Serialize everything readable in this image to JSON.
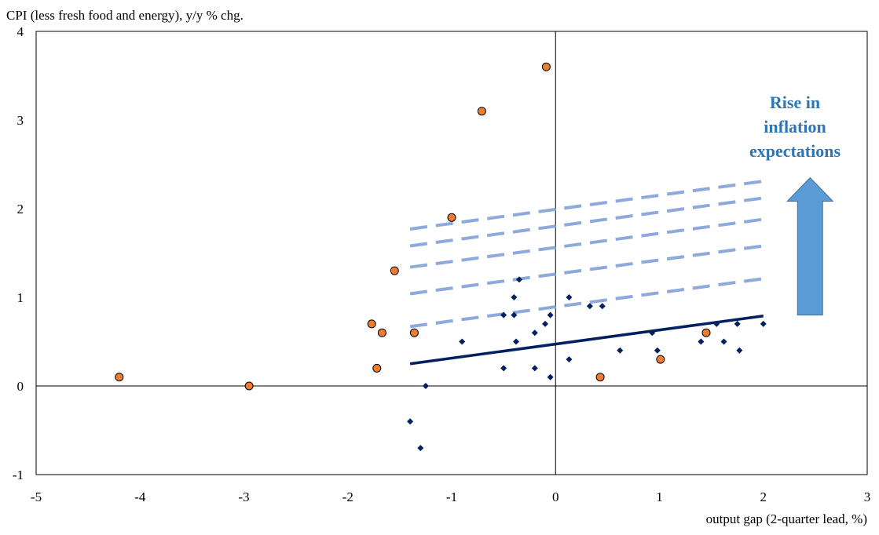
{
  "chart_data": {
    "type": "scatter",
    "ylabel": "CPI (less fresh food and energy), y/y % chg.",
    "xlabel": "output gap (2-quarter lead, %)",
    "xlim": [
      -5,
      3
    ],
    "ylim": [
      -1,
      4
    ],
    "xticks": [
      "-5",
      "-4",
      "-3",
      "-2",
      "-1",
      "0",
      "1",
      "2",
      "3"
    ],
    "yticks": [
      "-1",
      "0",
      "1",
      "2",
      "3",
      "4"
    ],
    "grid": false,
    "series": [
      {
        "marker": "circle",
        "color": "#ED7D31",
        "points": [
          {
            "x": -4.2,
            "y": 0.1
          },
          {
            "x": -2.95,
            "y": 0.0
          },
          {
            "x": -1.77,
            "y": 0.7
          },
          {
            "x": -1.67,
            "y": 0.6
          },
          {
            "x": -1.72,
            "y": 0.2
          },
          {
            "x": -1.55,
            "y": 1.3
          },
          {
            "x": -1.36,
            "y": 0.6
          },
          {
            "x": -1.0,
            "y": 1.9
          },
          {
            "x": -0.71,
            "y": 3.1
          },
          {
            "x": -0.09,
            "y": 3.6
          },
          {
            "x": 0.43,
            "y": 0.1
          },
          {
            "x": 1.01,
            "y": 0.3
          },
          {
            "x": 1.45,
            "y": 0.6
          }
        ]
      },
      {
        "marker": "diamond",
        "color": "#002060",
        "points": [
          {
            "x": -1.4,
            "y": -0.4
          },
          {
            "x": -1.3,
            "y": -0.7
          },
          {
            "x": -1.25,
            "y": 0.0
          },
          {
            "x": -0.9,
            "y": 0.5
          },
          {
            "x": -0.5,
            "y": 0.8
          },
          {
            "x": -0.4,
            "y": 0.8
          },
          {
            "x": -0.4,
            "y": 1.0
          },
          {
            "x": -0.35,
            "y": 1.2
          },
          {
            "x": -0.38,
            "y": 0.5
          },
          {
            "x": -0.5,
            "y": 0.2
          },
          {
            "x": -0.2,
            "y": 0.6
          },
          {
            "x": -0.2,
            "y": 0.2
          },
          {
            "x": -0.1,
            "y": 0.7
          },
          {
            "x": -0.05,
            "y": 0.8
          },
          {
            "x": -0.05,
            "y": 0.1
          },
          {
            "x": 0.13,
            "y": 1.0
          },
          {
            "x": 0.13,
            "y": 0.3
          },
          {
            "x": 0.33,
            "y": 0.9
          },
          {
            "x": 0.45,
            "y": 0.9
          },
          {
            "x": 0.62,
            "y": 0.4
          },
          {
            "x": 0.93,
            "y": 0.6
          },
          {
            "x": 0.98,
            "y": 0.4
          },
          {
            "x": 1.4,
            "y": 0.5
          },
          {
            "x": 1.55,
            "y": 0.7
          },
          {
            "x": 1.62,
            "y": 0.5
          },
          {
            "x": 1.75,
            "y": 0.7
          },
          {
            "x": 1.77,
            "y": 0.4
          },
          {
            "x": 2.0,
            "y": 0.7
          }
        ]
      }
    ],
    "trend_line": {
      "x": [
        -1.4,
        2.0
      ],
      "y": [
        0.25,
        0.79
      ],
      "color": "#002060"
    },
    "shifted_lines": {
      "color": "#8EA9DB",
      "dash": true,
      "lines": [
        {
          "x": [
            -1.4,
            2.0
          ],
          "y": [
            0.67,
            1.21
          ]
        },
        {
          "x": [
            -1.4,
            2.0
          ],
          "y": [
            1.04,
            1.58
          ]
        },
        {
          "x": [
            -1.4,
            2.0
          ],
          "y": [
            1.34,
            1.88
          ]
        },
        {
          "x": [
            -1.4,
            2.0
          ],
          "y": [
            1.58,
            2.12
          ]
        },
        {
          "x": [
            -1.4,
            2.0
          ],
          "y": [
            1.77,
            2.31
          ]
        }
      ]
    },
    "annotation": {
      "lines": [
        "Rise in",
        "inflation",
        "expectations"
      ],
      "color": "#2E75B6",
      "arrow_color": "#5B9BD5",
      "arrow_x": 2.45,
      "arrow_y": [
        0.8,
        2.35
      ]
    }
  }
}
